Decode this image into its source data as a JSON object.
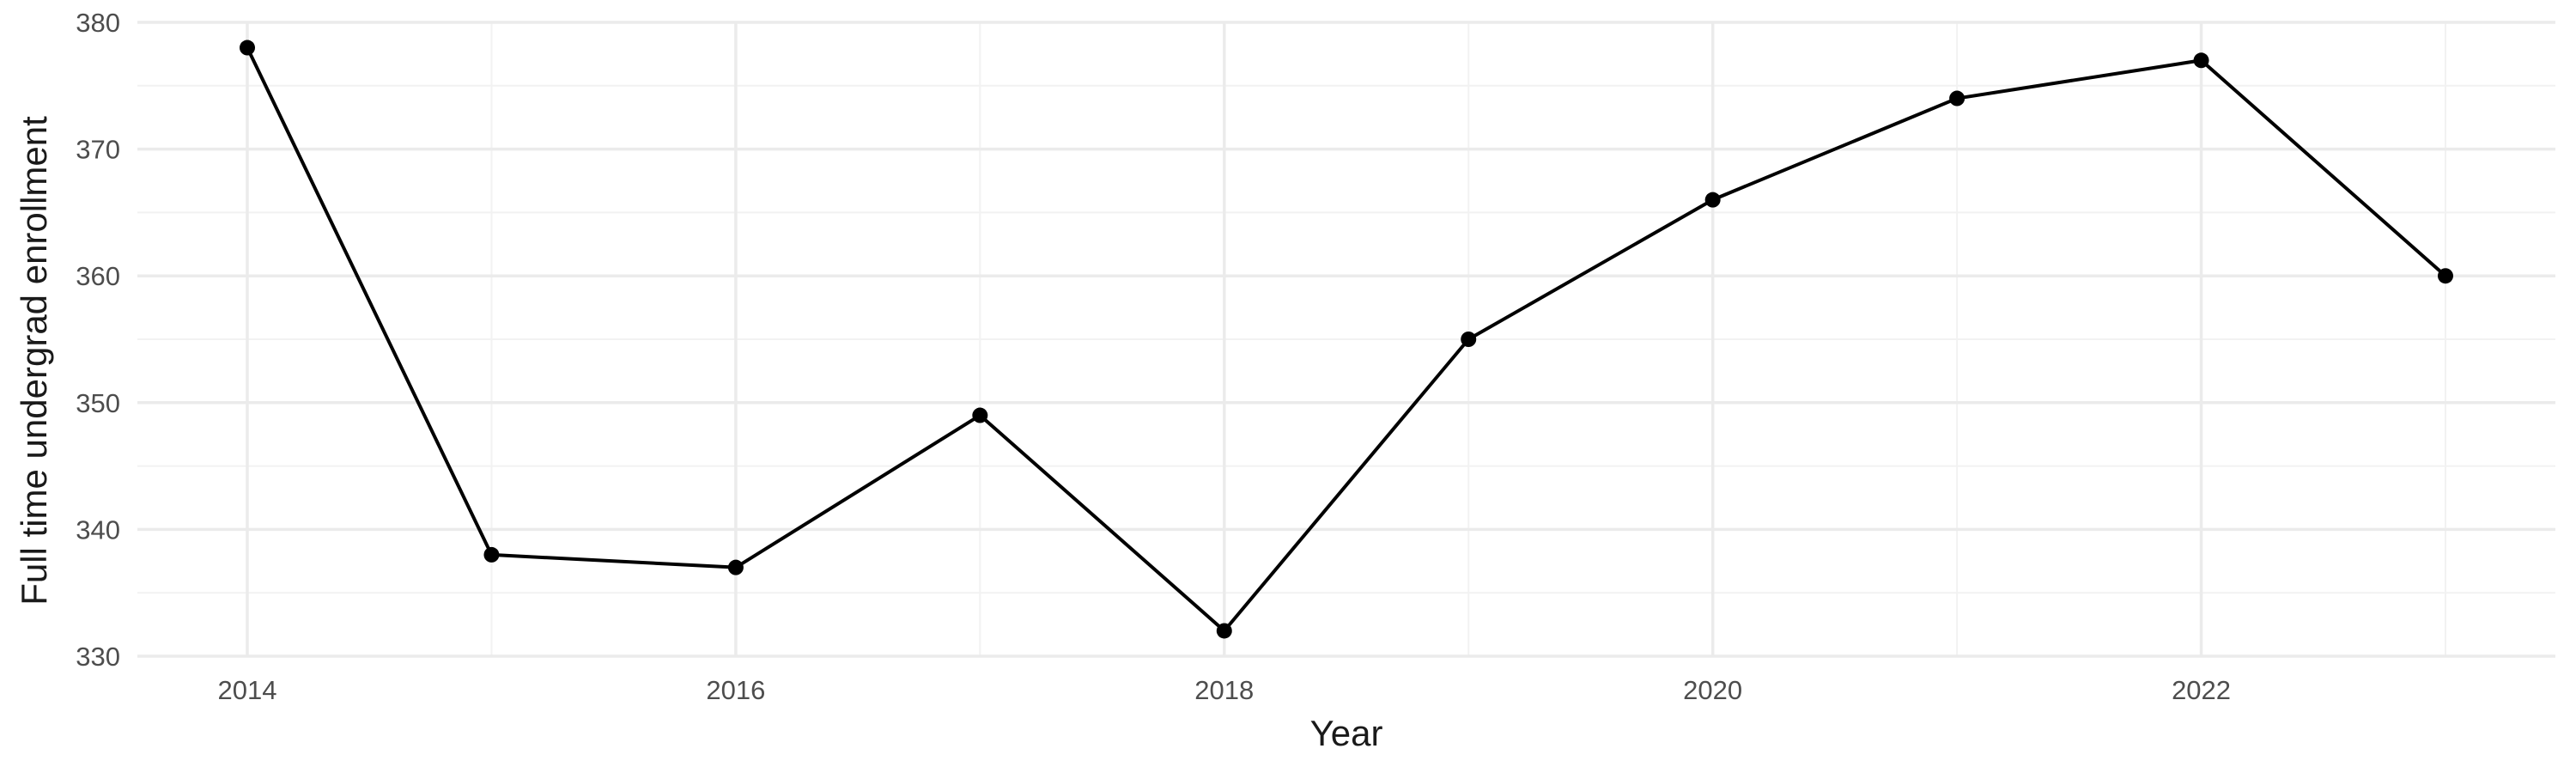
{
  "chart_data": {
    "type": "line",
    "title": "",
    "xlabel": "Year",
    "ylabel": "Full time undergrad enrollment",
    "x": [
      2014,
      2015,
      2016,
      2017,
      2018,
      2019,
      2020,
      2021,
      2022,
      2023
    ],
    "series": [
      {
        "values": [
          378,
          338,
          337,
          349,
          332,
          355,
          366,
          374,
          377,
          360
        ]
      }
    ],
    "xlim": [
      2013.55,
      2023.45
    ],
    "ylim": [
      330,
      380
    ],
    "x_ticks": [
      2014,
      2016,
      2018,
      2020,
      2022
    ],
    "x_tick_labels": [
      "2014",
      "2016",
      "2018",
      "2020",
      "2022"
    ],
    "y_ticks": [
      330,
      340,
      350,
      360,
      370,
      380
    ],
    "y_tick_labels": [
      "330",
      "340",
      "350",
      "360",
      "370",
      "380"
    ],
    "grid": true,
    "legend": "none",
    "line_color": "#000000",
    "grid_color": "#ebebeb"
  }
}
